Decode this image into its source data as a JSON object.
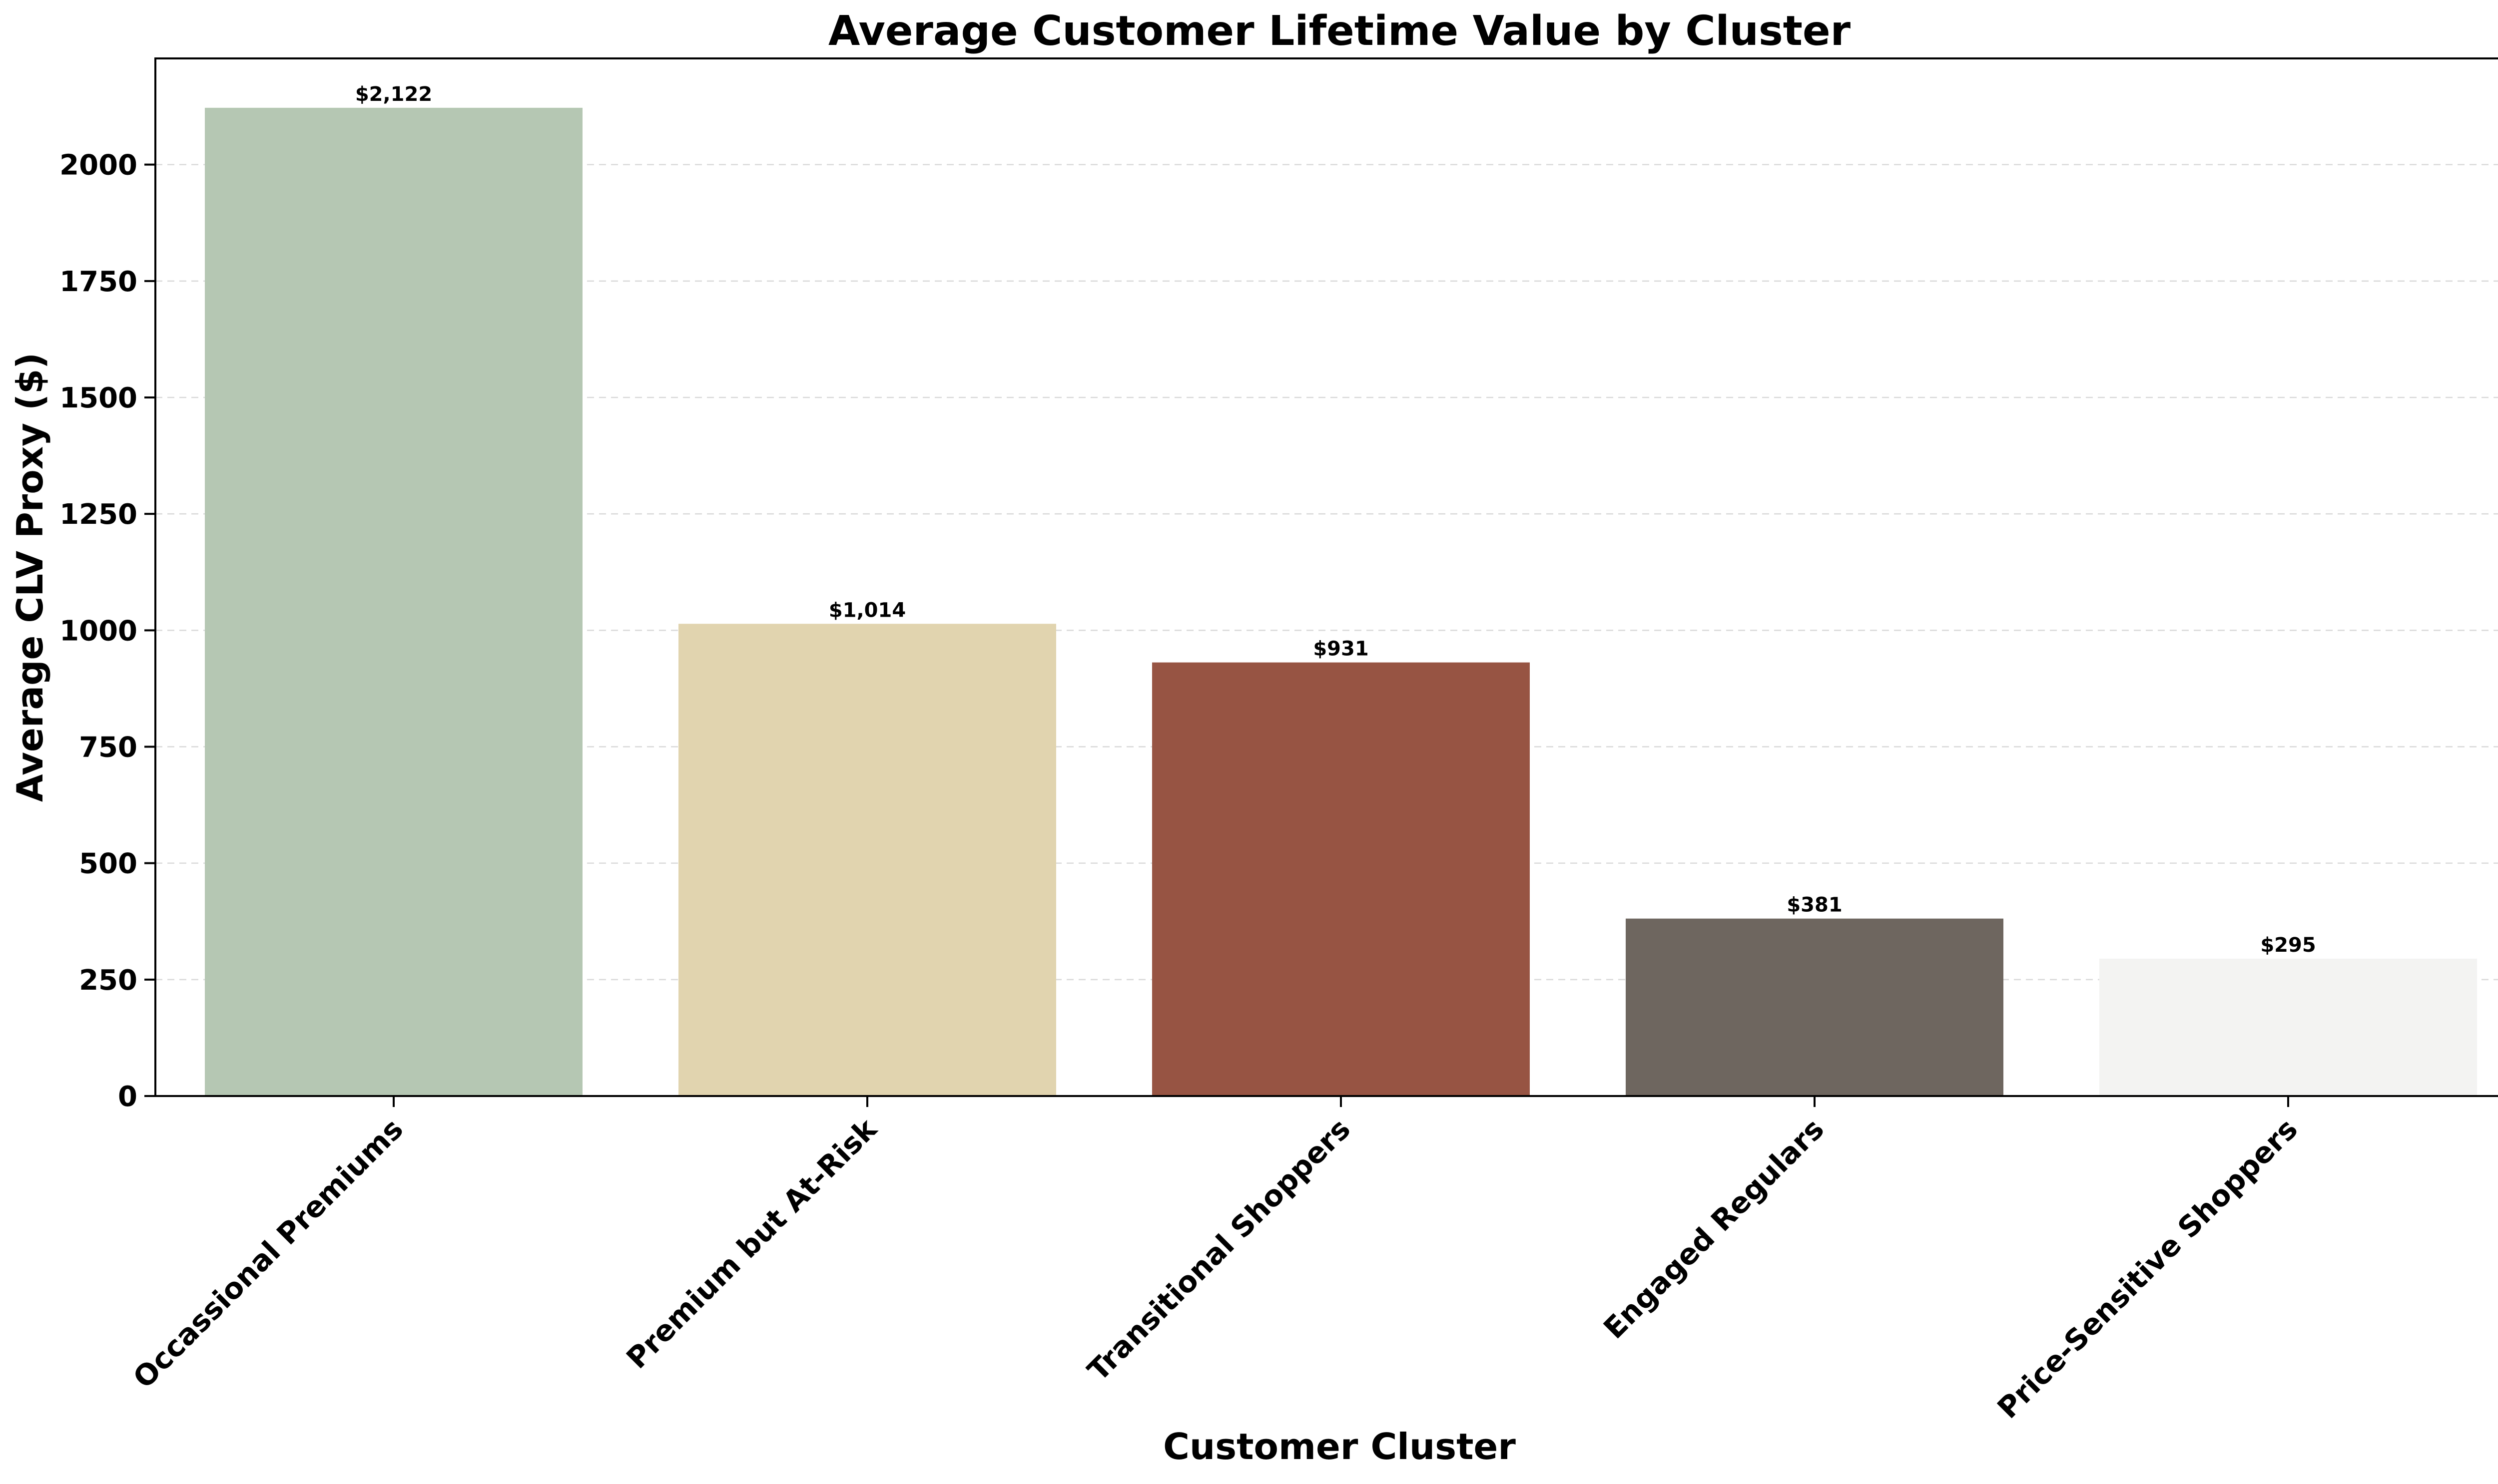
{
  "chart_data": {
    "type": "bar",
    "title": "Average Customer Lifetime Value by Cluster",
    "xlabel": "Customer Cluster",
    "ylabel": "Average CLV Proxy ($)",
    "categories": [
      "Occassional Premiums",
      "Premium but At-Risk",
      "Transitional Shoppers",
      "Engaged Regulars",
      "Price-Sensitive Shoppers"
    ],
    "values": [
      2122,
      1014,
      931,
      381,
      295
    ],
    "data_labels": [
      "$2,122",
      "$1,014",
      "$931",
      "$381",
      "$295"
    ],
    "bar_colors": [
      "#b5c7b3",
      "#e1d4af",
      "#975443",
      "#6e665f",
      "#f3f3f2"
    ],
    "title_color": "#a04a34",
    "ylim": [
      0,
      2228
    ],
    "yticks": [
      0,
      250,
      500,
      750,
      1000,
      1250,
      1500,
      1750,
      2000
    ],
    "ytick_labels": [
      "0",
      "250",
      "500",
      "750",
      "1000",
      "1250",
      "1500",
      "1750",
      "2000"
    ],
    "grid": "y-dashed",
    "legend": "none"
  }
}
